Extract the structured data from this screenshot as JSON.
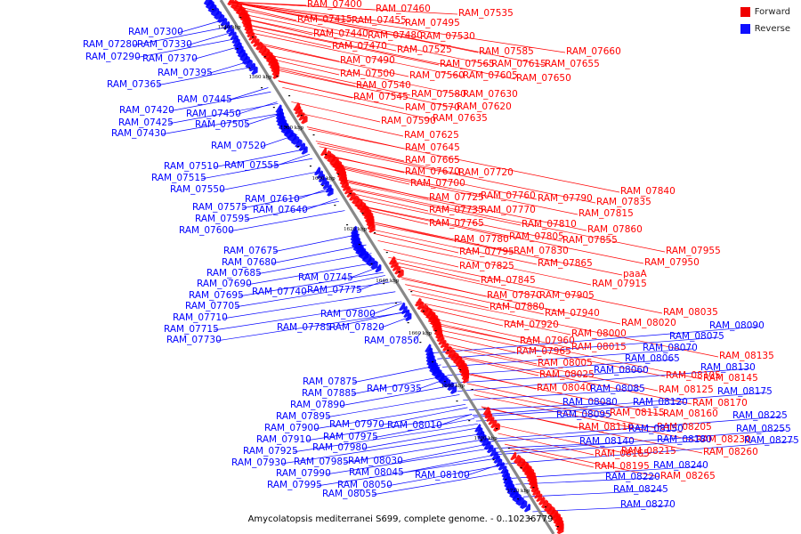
{
  "legend": {
    "forward_label": "Forward",
    "reverse_label": "Reverse",
    "forward_color": "#ff0000",
    "reverse_color": "#0000ff"
  },
  "caption": "Amycolatopsis mediterranei S699, complete genome. - 0..10236779",
  "axis_ticks": [
    "1540 kbp",
    "1560 kbp",
    "1580 kbp",
    "1600 kbp",
    "1620 kbp",
    "1640 kbp",
    "1660 kbp",
    "1680 kbp",
    "1700 kbp",
    "1720 kbp"
  ],
  "forward_genes": [
    "RAM_07400",
    "RAM_07460",
    "RAM_07535",
    "RAM_07415",
    "RAM_07455",
    "RAM_07495",
    "RAM_07440",
    "RAM_07480",
    "RAM_07530",
    "RAM_07470",
    "RAM_07525",
    "RAM_07585",
    "RAM_07660",
    "RAM_07490",
    "RAM_07565",
    "RAM_07615",
    "RAM_07655",
    "RAM_07500",
    "RAM_07560",
    "RAM_07605",
    "RAM_07650",
    "RAM_07540",
    "RAM_07580",
    "RAM_07630",
    "RAM_07545",
    "RAM_07570",
    "RAM_07620",
    "RAM_07590",
    "RAM_07635",
    "RAM_07625",
    "RAM_07645",
    "RAM_07665",
    "RAM_07670",
    "RAM_07720",
    "RAM_07700",
    "RAM_07840",
    "RAM_07725",
    "RAM_07760",
    "RAM_07790",
    "RAM_07835",
    "RAM_07735",
    "RAM_07770",
    "RAM_07815",
    "RAM_07765",
    "RAM_07810",
    "RAM_07860",
    "RAM_07780",
    "RAM_07805",
    "RAM_07855",
    "RAM_07955",
    "RAM_07795",
    "RAM_07830",
    "RAM_07950",
    "RAM_07825",
    "RAM_07865",
    "paaA",
    "RAM_07845",
    "RAM_07915",
    "RAM_07870",
    "RAM_07905",
    "RAM_07880",
    "RAM_07940",
    "RAM_08035",
    "RAM_07920",
    "RAM_08020",
    "RAM_08000",
    "RAM_07960",
    "RAM_08015",
    "RAM_07965",
    "RAM_08005",
    "RAM_08025",
    "RAM_08040",
    "RAM_08135",
    "RAM_08105",
    "RAM_08145",
    "RAM_08125",
    "RAM_08170",
    "RAM_08115",
    "RAM_08160",
    "RAM_08110",
    "RAM_08205",
    "RAM_08230",
    "RAM_08165",
    "RAM_08215",
    "RAM_08260",
    "RAM_08195",
    "RAM_08265"
  ],
  "reverse_genes": [
    "RAM_07300",
    "RAM_07280",
    "RAM_07330",
    "RAM_07290",
    "RAM_07370",
    "RAM_07395",
    "RAM_07365",
    "RAM_07445",
    "RAM_07420",
    "RAM_07450",
    "RAM_07425",
    "RAM_07505",
    "RAM_07430",
    "RAM_07520",
    "RAM_07510",
    "RAM_07555",
    "RAM_07515",
    "RAM_07550",
    "RAM_07610",
    "RAM_07575",
    "RAM_07640",
    "RAM_07595",
    "RAM_07600",
    "RAM_07675",
    "RAM_07680",
    "RAM_07685",
    "RAM_07745",
    "RAM_07690",
    "RAM_07740",
    "RAM_07775",
    "RAM_07695",
    "RAM_07705",
    "RAM_07800",
    "RAM_07710",
    "RAM_07785",
    "RAM_07820",
    "RAM_07715",
    "RAM_07850",
    "RAM_07730",
    "RAM_08090",
    "RAM_08075",
    "RAM_08070",
    "RAM_08065",
    "RAM_08060",
    "RAM_08130",
    "RAM_07875",
    "RAM_07935",
    "RAM_07885",
    "RAM_08085",
    "RAM_08175",
    "RAM_07890",
    "RAM_08080",
    "RAM_08120",
    "RAM_07895",
    "RAM_08095",
    "RAM_08225",
    "RAM_07900",
    "RAM_07970",
    "RAM_08010",
    "RAM_08150",
    "RAM_08255",
    "RAM_07910",
    "RAM_07975",
    "RAM_08140",
    "RAM_08180",
    "RAM_08275",
    "RAM_07925",
    "RAM_07980",
    "RAM_07930",
    "RAM_07985",
    "RAM_08030",
    "RAM_07990",
    "RAM_08045",
    "RAM_08240",
    "RAM_08100",
    "RAM_07995",
    "RAM_08050",
    "RAM_08220",
    "RAM_08055",
    "RAM_08245",
    "RAM_08270"
  ]
}
